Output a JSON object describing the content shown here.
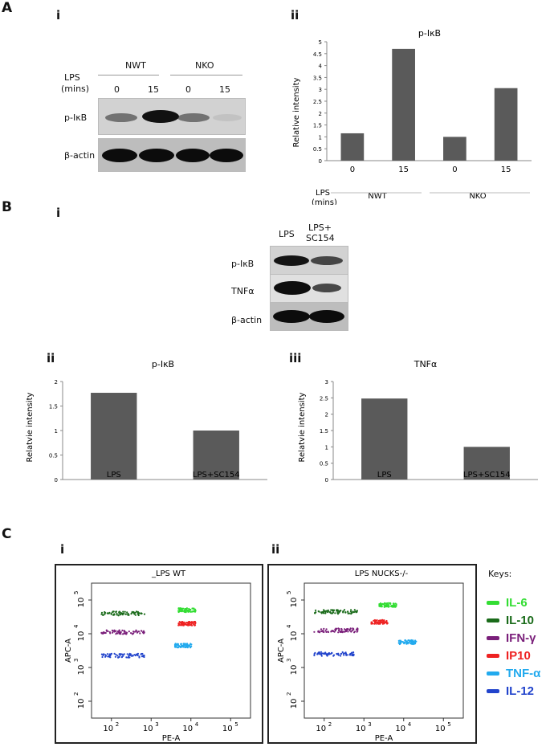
{
  "panel_letters": {
    "a": "A",
    "b": "B",
    "c": "C"
  },
  "panel_roman": {
    "a_i": "i",
    "a_ii": "ii",
    "b_i": "i",
    "b_ii": "ii",
    "b_iii": "iii",
    "c_i": "i",
    "c_ii": "ii"
  },
  "blot_a": {
    "group1": "NWT",
    "group2": "NKO",
    "lps_label": "LPS",
    "mins_label": "(mins)",
    "lanes": [
      "0",
      "15",
      "0",
      "15"
    ],
    "row1": "p-IκB",
    "row2": "β-actin",
    "row1_intensity": [
      0.55,
      1.0,
      0.55,
      0.1
    ],
    "row2_intensity": [
      1.0,
      1.0,
      1.0,
      1.0
    ]
  },
  "blot_b": {
    "lanes": [
      "LPS",
      "LPS+",
      "SC154"
    ],
    "rows": [
      "p-IκB",
      "TNFα",
      "β-actin"
    ],
    "row_intensity": [
      [
        0.95,
        0.7
      ],
      [
        1.0,
        0.6
      ],
      [
        1.0,
        1.0
      ]
    ]
  },
  "chart_data": [
    {
      "type": "bar",
      "title": "p-IκB",
      "ylabel": "Relative intensity",
      "categories": [
        "0",
        "15",
        "0",
        "15"
      ],
      "group_labels": [
        "NWT",
        "NKO"
      ],
      "x_prefix": "LPS",
      "x_prefix2": "(mins)",
      "values": [
        1.15,
        4.7,
        1.0,
        3.05
      ],
      "ylim": [
        0,
        5
      ],
      "yticks": [
        "0",
        "0.5",
        "1",
        "1.5",
        "2",
        "2.5",
        "3",
        "3.5",
        "4",
        "4.5",
        "5"
      ],
      "bar_color": "#5a5a5a"
    },
    {
      "type": "bar",
      "title": "p-IκB",
      "ylabel": "Relatvie intensity",
      "categories": [
        "LPS",
        "LPS+SC154"
      ],
      "values": [
        1.77,
        1.0
      ],
      "ylim": [
        0,
        2
      ],
      "yticks": [
        "0",
        "0.5",
        "1",
        "1.5",
        "2"
      ],
      "bar_color": "#5a5a5a"
    },
    {
      "type": "bar",
      "title": "TNFα",
      "ylabel": "Relatvie intensity",
      "categories": [
        "LPS",
        "LPS+SC154"
      ],
      "values": [
        2.48,
        1.0
      ],
      "ylim": [
        0,
        3
      ],
      "yticks": [
        "0",
        "0.5",
        "1",
        "1.5",
        "2",
        "2.5",
        "3"
      ],
      "bar_color": "#5a5a5a"
    },
    {
      "type": "scatter",
      "title": "_LPS  WT",
      "xlabel": "PE-A",
      "ylabel": "APC-A",
      "xticks": [
        "10",
        "10",
        "10",
        "10"
      ],
      "xexp": [
        "2",
        "3",
        "4",
        "5"
      ],
      "yticks": [
        "10",
        "10",
        "10",
        "10"
      ],
      "yexp": [
        "5",
        "4",
        "3",
        "2"
      ],
      "clusters": [
        {
          "name": "IL-6",
          "x": 3.9,
          "y": 4.7
        },
        {
          "name": "IL-10",
          "x": 2.3,
          "y": 4.6
        },
        {
          "name": "IFN-γ",
          "x": 2.3,
          "y": 4.05
        },
        {
          "name": "IP10",
          "x": 3.9,
          "y": 4.3
        },
        {
          "name": "TNF-α",
          "x": 3.8,
          "y": 3.65
        },
        {
          "name": "IL-12",
          "x": 2.3,
          "y": 3.35
        }
      ]
    },
    {
      "type": "scatter",
      "title": "LPS NUCKS-/-",
      "xlabel": "PE-A",
      "ylabel": "APC-A",
      "xticks": [
        "10",
        "10",
        "10",
        "10"
      ],
      "xexp": [
        "2",
        "3",
        "4",
        "5"
      ],
      "yticks": [
        "10",
        "10",
        "10",
        "10"
      ],
      "yexp": [
        "5",
        "4",
        "3",
        "2"
      ],
      "clusters": [
        {
          "name": "IL-6",
          "x": 3.6,
          "y": 4.85
        },
        {
          "name": "IL-10",
          "x": 2.3,
          "y": 4.65
        },
        {
          "name": "IFN-γ",
          "x": 2.3,
          "y": 4.1
        },
        {
          "name": "IP10",
          "x": 3.4,
          "y": 4.35
        },
        {
          "name": "TNF-α",
          "x": 4.1,
          "y": 3.75
        },
        {
          "name": "IL-12",
          "x": 2.3,
          "y": 3.4
        }
      ]
    }
  ],
  "keys": {
    "title": "Keys:",
    "items": [
      {
        "label": "IL-6",
        "color": "#33dd33"
      },
      {
        "label": "IL-10",
        "color": "#1a6b1a"
      },
      {
        "label": "IFN-γ",
        "color": "#7a1f7a"
      },
      {
        "label": "IP10",
        "color": "#ee2222"
      },
      {
        "label": "TNF-α",
        "color": "#22aaee"
      },
      {
        "label": "IL-12",
        "color": "#2244cc"
      }
    ]
  }
}
